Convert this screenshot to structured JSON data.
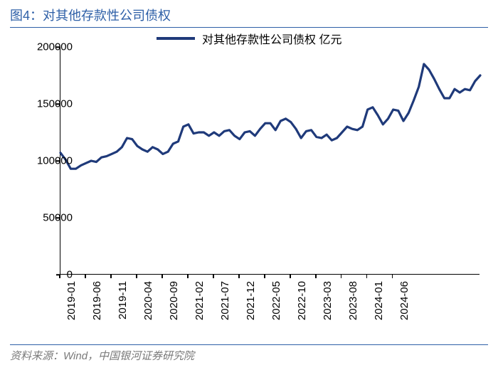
{
  "title": "图4：对其他存款性公司债权",
  "legend_label": "对其他存款性公司债权 亿元",
  "footer": "资料来源：Wind，中国银河证券研究院",
  "chart": {
    "type": "line",
    "line_color": "#1f3a7a",
    "line_width": 3.2,
    "background_color": "#ffffff",
    "axis_color": "#000000",
    "title_color": "#2d5fa7",
    "footer_color": "#7a7a7a",
    "ylim": [
      0,
      200000
    ],
    "ytick_step": 50000,
    "yticks": [
      0,
      50000,
      100000,
      150000,
      200000
    ],
    "x_labels": [
      "2019-01",
      "2019-06",
      "2019-11",
      "2020-04",
      "2020-09",
      "2021-02",
      "2021-07",
      "2021-12",
      "2022-05",
      "2022-10",
      "2023-03",
      "2023-08",
      "2024-01",
      "2024-06"
    ],
    "x_label_every": 5,
    "values": [
      107000,
      101000,
      93000,
      93000,
      96000,
      98000,
      100000,
      99000,
      103000,
      104000,
      106000,
      108000,
      112000,
      120000,
      119000,
      113000,
      110000,
      108000,
      112000,
      110000,
      106000,
      108000,
      115000,
      117000,
      130000,
      132000,
      124000,
      125000,
      125000,
      122000,
      125000,
      122000,
      126000,
      127000,
      122000,
      119000,
      125000,
      126000,
      122000,
      128000,
      133000,
      133000,
      127000,
      135000,
      137000,
      134000,
      128000,
      120000,
      126000,
      127000,
      121000,
      120000,
      123000,
      118000,
      120000,
      125000,
      130000,
      128000,
      127000,
      130000,
      145000,
      147000,
      140000,
      132000,
      137000,
      145000,
      144000,
      135000,
      142000,
      153000,
      165000,
      185000,
      180000,
      172000,
      163000,
      155000,
      155000,
      163000,
      160000,
      163000,
      162000,
      170000,
      175000
    ]
  }
}
